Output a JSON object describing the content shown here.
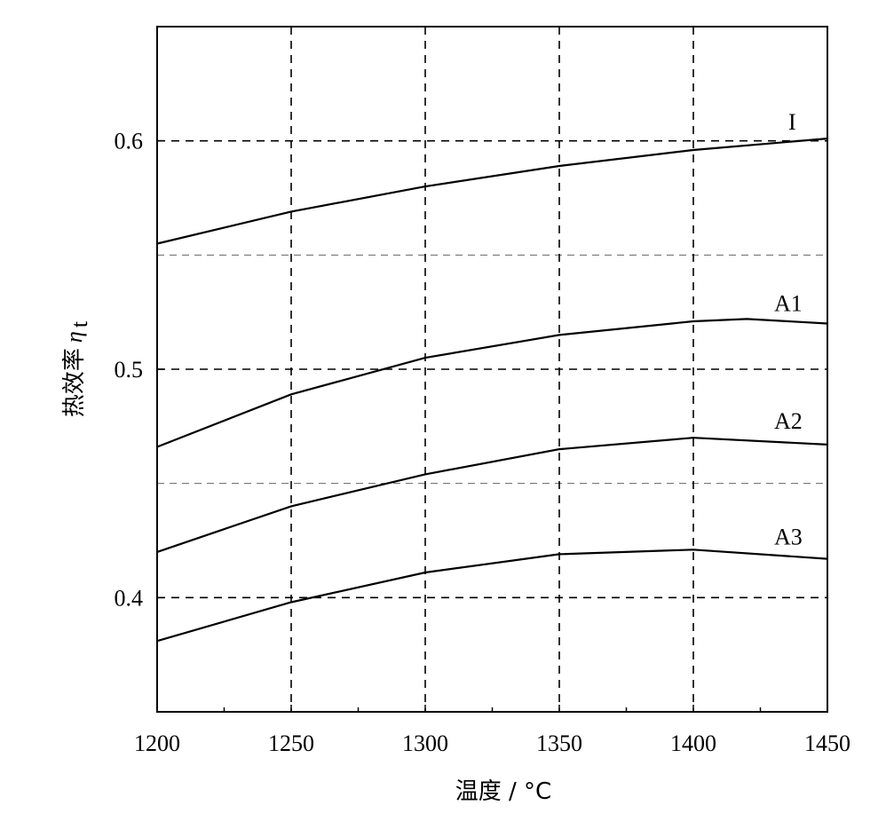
{
  "chart_data": {
    "type": "line",
    "xlabel": "温度 / °C",
    "ylabel_text": "热效率",
    "ylabel_symbol": "η",
    "ylabel_subscript": "t",
    "xlim": [
      1200,
      1450
    ],
    "ylim": [
      0.35,
      0.65
    ],
    "x_ticks": [
      1200,
      1250,
      1300,
      1350,
      1400,
      1450
    ],
    "x_tick_labels": [
      "1200",
      "1250",
      "1300",
      "1350",
      "1400",
      "1450"
    ],
    "y_ticks": [
      0.4,
      0.5,
      0.6
    ],
    "y_tick_labels": [
      "0.4",
      "0.5",
      "0.6"
    ],
    "y_minor_gridlines": [
      0.45,
      0.55
    ],
    "grid": true,
    "series": [
      {
        "name": "I",
        "x": [
          1200,
          1250,
          1300,
          1350,
          1400,
          1450
        ],
        "values": [
          0.555,
          0.569,
          0.58,
          0.589,
          0.596,
          0.601
        ]
      },
      {
        "name": "A1",
        "x": [
          1200,
          1250,
          1300,
          1350,
          1400,
          1420,
          1450
        ],
        "values": [
          0.466,
          0.489,
          0.505,
          0.515,
          0.521,
          0.522,
          0.52
        ]
      },
      {
        "name": "A2",
        "x": [
          1200,
          1250,
          1300,
          1350,
          1400,
          1450
        ],
        "values": [
          0.42,
          0.44,
          0.454,
          0.465,
          0.47,
          0.467
        ]
      },
      {
        "name": "A3",
        "x": [
          1200,
          1250,
          1300,
          1350,
          1400,
          1450
        ],
        "values": [
          0.381,
          0.398,
          0.411,
          0.419,
          0.421,
          0.417
        ]
      }
    ]
  }
}
